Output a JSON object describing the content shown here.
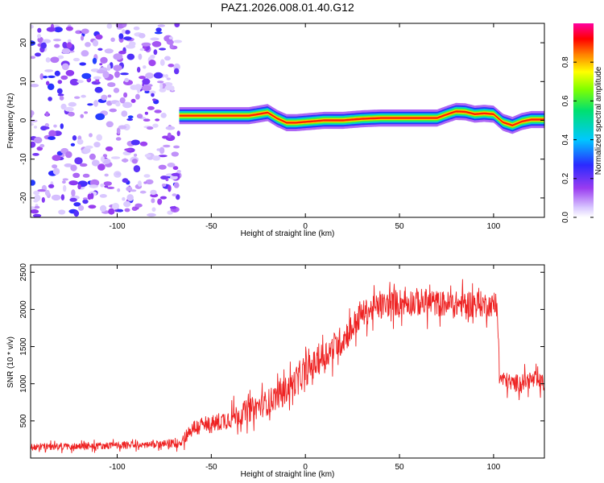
{
  "figure_title": "PAZ1.2026.008.01.40.G12",
  "chart_data": [
    {
      "type": "heatmap",
      "title": "PAZ1.2026.008.01.40.G12",
      "xlabel": "Height of straight line (km)",
      "ylabel": "Frequency (Hz)",
      "xlim": [
        -146,
        127
      ],
      "ylim": [
        -25,
        25
      ],
      "x_ticks": [
        -100,
        -50,
        0,
        50,
        100
      ],
      "y_ticks": [
        -20,
        -10,
        0,
        10,
        20
      ],
      "grid": false,
      "colorbar": {
        "label": "Normalized spectral amplitude",
        "range": [
          0.0,
          1.0
        ],
        "ticks": [
          0.0,
          0.2,
          0.4,
          0.6,
          0.8
        ],
        "tick_labels": [
          "0.0",
          "0.2",
          "0.4",
          "0.6",
          "0.8"
        ],
        "colormap": "rainbow (white, violet, blue, cyan, green, yellow, red, magenta)"
      },
      "noise_region_x": [
        -146,
        -67
      ],
      "noise_level_max": 0.25,
      "signal_band_halfwidth_hz": 1.0,
      "signal_peak_amplitude": 0.9,
      "signal_frequency_track": {
        "x": [
          -67,
          -50,
          -40,
          -30,
          -20,
          -15,
          -10,
          -5,
          0,
          10,
          20,
          30,
          40,
          50,
          60,
          70,
          75,
          80,
          85,
          90,
          95,
          100,
          105,
          110,
          115,
          120,
          127
        ],
        "frequency_hz": [
          1.2,
          1.2,
          1.2,
          1.2,
          2.0,
          0.5,
          -0.6,
          -0.6,
          -0.4,
          0.0,
          0.0,
          0.4,
          0.6,
          0.6,
          0.6,
          0.6,
          1.5,
          2.3,
          2.2,
          1.6,
          1.8,
          1.6,
          -0.5,
          -1.3,
          -0.3,
          0.2,
          0.2
        ]
      }
    },
    {
      "type": "line",
      "title": "",
      "xlabel": "Height of straight line (km)",
      "ylabel": "SNR (10 * v/v)",
      "xlim": [
        -146,
        127
      ],
      "ylim": [
        0,
        2600
      ],
      "x_ticks": [
        -100,
        -50,
        0,
        50,
        100
      ],
      "y_ticks": [
        500,
        1000,
        1500,
        2000,
        2500
      ],
      "grid": false,
      "color": "#ee2222",
      "series": [
        {
          "name": "SNR",
          "x": [
            -146,
            -120,
            -100,
            -80,
            -67,
            -60,
            -50,
            -40,
            -30,
            -20,
            -10,
            0,
            10,
            20,
            25,
            30,
            40,
            50,
            60,
            70,
            80,
            90,
            97,
            102,
            103,
            110,
            120,
            127
          ],
          "values": [
            150,
            160,
            170,
            180,
            200,
            400,
            450,
            540,
            640,
            750,
            920,
            1150,
            1380,
            1600,
            1760,
            1940,
            2050,
            2100,
            2100,
            2080,
            2070,
            2080,
            2060,
            2050,
            1080,
            1000,
            1050,
            1000
          ],
          "noise_amplitude": [
            60,
            60,
            60,
            60,
            80,
            150,
            150,
            180,
            200,
            220,
            230,
            240,
            250,
            260,
            250,
            220,
            220,
            230,
            240,
            220,
            220,
            240,
            200,
            180,
            150,
            150,
            150,
            150
          ]
        }
      ]
    }
  ]
}
